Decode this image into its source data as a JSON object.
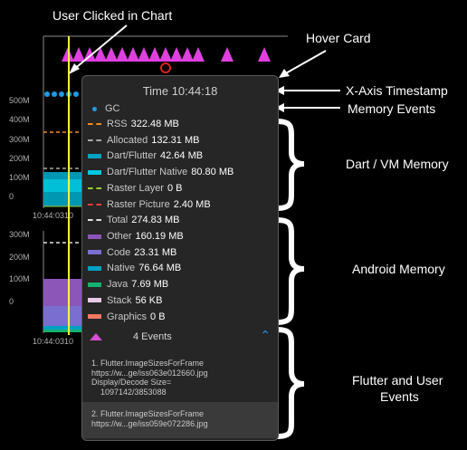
{
  "annotations": {
    "user_clicked": "User Clicked in Chart",
    "hover_card": "Hover Card",
    "x_axis_timestamp": "X-Axis Timestamp",
    "memory_events": "Memory Events",
    "dart_vm_memory": "Dart / VM Memory",
    "android_memory": "Android Memory",
    "flutter_user_events_line1": "Flutter and User",
    "flutter_user_events_line2": "Events"
  },
  "chart": {
    "top_ticks": [
      "500M",
      "400M",
      "300M",
      "200M",
      "100M",
      "0"
    ],
    "top_time_label": "10:44:0310",
    "bottom_ticks": [
      "300M",
      "200M",
      "100M",
      "0"
    ],
    "bottom_time_label": "10:44:0310"
  },
  "hover_card": {
    "time_label": "Time 10:44:18",
    "gc_label": "GC",
    "dart_vm": [
      {
        "name": "RSS",
        "value": "322.48 MB",
        "color": "#f08a24",
        "style": "dashed"
      },
      {
        "name": "Allocated",
        "value": "132.31 MB",
        "color": "#a8a8a8",
        "style": "dashed"
      },
      {
        "name": "Dart/Flutter",
        "value": "42.64 MB",
        "color": "#00a4bf",
        "style": "solid"
      },
      {
        "name": "Dart/Flutter Native",
        "value": "80.80 MB",
        "color": "#00c9e0",
        "style": "solid"
      },
      {
        "name": "Raster Layer",
        "value": "0 B",
        "color": "#9acd32",
        "style": "dashed"
      },
      {
        "name": "Raster Picture",
        "value": "2.40 MB",
        "color": "#e0403a",
        "style": "dashed"
      }
    ],
    "total": {
      "name": "Total",
      "value": "274.83 MB",
      "color": "#e0e0e0",
      "style": "dashed"
    },
    "android": [
      {
        "name": "Other",
        "value": "160.19 MB",
        "color": "#8c55b8",
        "style": "solid"
      },
      {
        "name": "Code",
        "value": "23.31 MB",
        "color": "#7a6fd0",
        "style": "solid"
      },
      {
        "name": "Native",
        "value": "76.64 MB",
        "color": "#00a0c0",
        "style": "solid"
      },
      {
        "name": "Java",
        "value": "7.69 MB",
        "color": "#18b070",
        "style": "solid"
      },
      {
        "name": "Stack",
        "value": "56 KB",
        "color": "#e8c8e8",
        "style": "solid"
      },
      {
        "name": "Graphics",
        "value": "0 B",
        "color": "#f07860",
        "style": "solid"
      }
    ],
    "events_count": "4 Events",
    "events": [
      {
        "lines": [
          "1. Flutter.ImageSizesForFrame",
          "https://w...ge/iss063e012660.jpg",
          "Display/Decode Size=",
          "1097142/3853088"
        ]
      },
      {
        "lines": [
          "2. Flutter.ImageSizesForFrame",
          "https://w...ge/iss059e072286.jpg"
        ]
      }
    ]
  },
  "colors": {
    "event_marker": "#e040e0",
    "gc_dot": "#1e9be5",
    "selection_line": "#ffff33",
    "hover_card_bg": "#262626",
    "chevron": "#2a8fd8"
  },
  "icons": {
    "gc": "gc-dot-icon",
    "events": "event-triangle-icon",
    "collapse": "chevron-up-icon",
    "marker": "red-circle-marker-icon"
  }
}
